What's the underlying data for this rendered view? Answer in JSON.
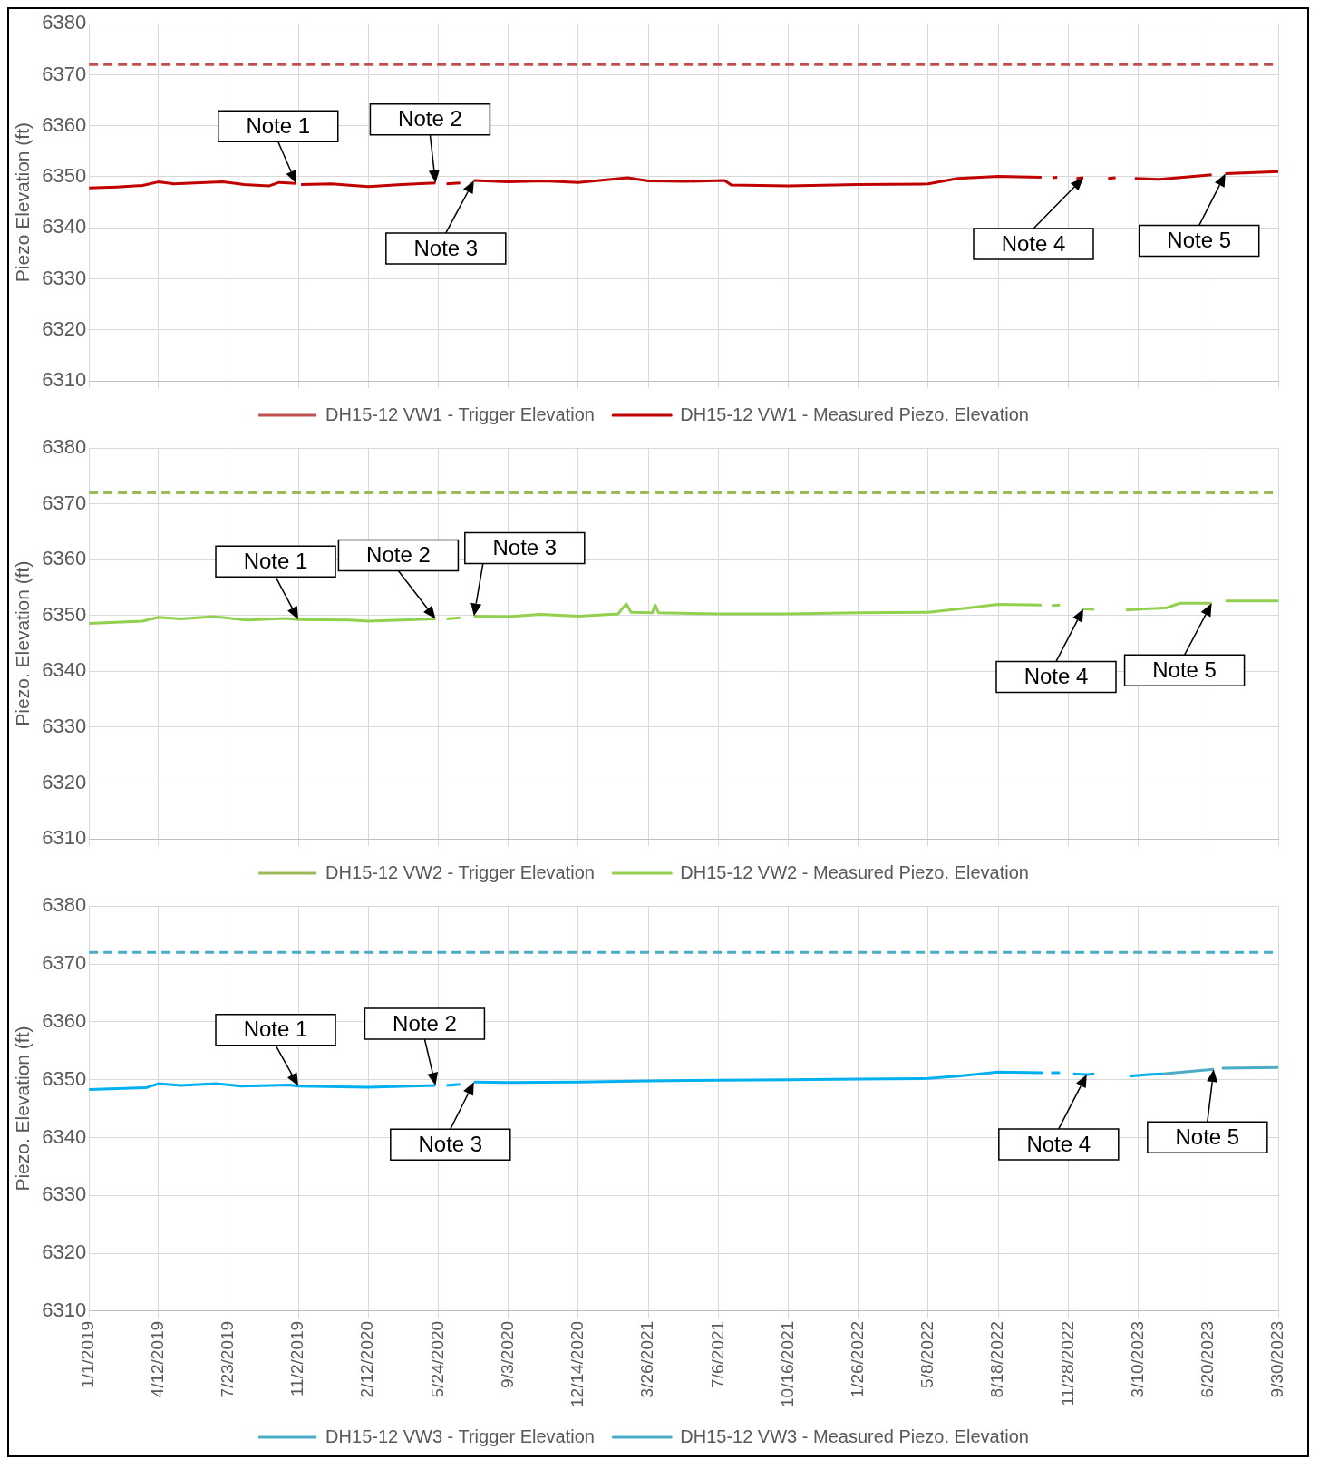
{
  "chart_data": [
    {
      "type": "line",
      "ylabel": "Piezo Elevation (ft)",
      "xlim": [
        "2019-01-01",
        "2023-09-30"
      ],
      "xticks": [
        {
          "value": "2019-01-01",
          "label": null
        },
        {
          "value": "2019-04-12",
          "label": null
        },
        {
          "value": "2019-07-23",
          "label": null
        },
        {
          "value": "2019-11-02",
          "label": null
        },
        {
          "value": "2020-02-12",
          "label": null
        },
        {
          "value": "2020-05-24",
          "label": null
        },
        {
          "value": "2020-09-03",
          "label": null
        },
        {
          "value": "2020-12-14",
          "label": null
        },
        {
          "value": "2021-03-26",
          "label": null
        },
        {
          "value": "2021-07-06",
          "label": null
        },
        {
          "value": "2021-10-16",
          "label": null
        },
        {
          "value": "2022-01-26",
          "label": null
        },
        {
          "value": "2022-05-08",
          "label": null
        },
        {
          "value": "2022-08-18",
          "label": null
        },
        {
          "value": "2022-11-28",
          "label": null
        },
        {
          "value": "2023-03-10",
          "label": null
        },
        {
          "value": "2023-06-20",
          "label": null
        },
        {
          "value": "2023-09-30",
          "label": null
        }
      ],
      "ylim": [
        6310,
        6380
      ],
      "yticks": [
        6310,
        6320,
        6330,
        6340,
        6350,
        6360,
        6370,
        6380
      ],
      "grid": true,
      "legend": "bottom",
      "tick_labels": "y",
      "series": [
        {
          "name": "DH15-12 VW1 - Trigger Elevation",
          "color": "#c0504d",
          "line_style": "dashed",
          "x": [
            "2019-01-01",
            "2023-09-30"
          ],
          "values": [
            6372,
            6372
          ]
        },
        {
          "name": "DH15-12 VW1 - Measured Piezo. Elevation",
          "color": "#c00000",
          "line_style": "solid",
          "x": [
            "2019-01-01",
            "2019-02-10",
            "2019-03-20",
            "2019-04-12",
            "2019-05-05",
            "2019-06-20",
            "2019-07-15",
            "2019-08-15",
            "2019-09-20",
            "2019-10-05",
            "2019-10-30",
            "2019-11-03",
            "2019-11-06",
            "2019-12-20",
            "2020-02-12",
            "2020-04-01",
            "2020-05-20",
            "2020-05-28",
            "2020-06-05",
            "2020-06-25",
            "2020-07-05",
            "2020-07-15",
            "2020-09-03",
            "2020-10-25",
            "2020-12-14",
            "2021-02-24",
            "2021-03-26",
            "2021-05-20",
            "2021-07-15",
            "2021-07-25",
            "2021-10-16",
            "2022-01-26",
            "2022-05-08",
            "2022-06-20",
            "2022-08-18",
            "2022-10-20",
            "2022-10-28",
            "2022-11-05",
            "2022-11-12",
            "2022-11-20",
            "2022-12-10",
            "2022-12-20",
            "2023-01-05",
            "2023-01-25",
            "2023-02-05",
            "2023-02-20",
            "2023-03-05",
            "2023-04-10",
            "2023-06-10",
            "2023-06-25",
            "2023-07-05",
            "2023-07-15",
            "2023-09-30"
          ],
          "values": [
            6347.8,
            6348.0,
            6348.3,
            6349.0,
            6348.6,
            6348.9,
            6349.0,
            6348.5,
            6348.2,
            6348.9,
            6348.7,
            null,
            6348.5,
            6348.6,
            6348.1,
            6348.5,
            6348.8,
            null,
            6348.6,
            6348.8,
            null,
            6349.3,
            6349.0,
            6349.2,
            6348.9,
            6349.8,
            6349.2,
            6349.1,
            6349.3,
            6348.4,
            6348.2,
            6348.5,
            6348.6,
            6349.7,
            6350.1,
            6349.9,
            null,
            6349.8,
            6349.9,
            null,
            6349.7,
            6349.8,
            null,
            6349.7,
            6349.8,
            null,
            6349.7,
            6349.5,
            6350.2,
            6350.4,
            null,
            6350.6,
            6351.0
          ]
        }
      ],
      "annotations": [
        {
          "text": "Note 1",
          "x": "2019-10-30",
          "y": 6348.7
        },
        {
          "text": "Note 2",
          "x": "2020-05-20",
          "y": 6348.8
        },
        {
          "text": "Note 3",
          "x": "2020-07-15",
          "y": 6349.3
        },
        {
          "text": "Note 4",
          "x": "2022-12-20",
          "y": 6349.8
        },
        {
          "text": "Note 5",
          "x": "2023-07-15",
          "y": 6350.6
        }
      ]
    },
    {
      "type": "line",
      "ylabel": "Piezo. Elevation (ft)",
      "xlim": [
        "2019-01-01",
        "2023-09-30"
      ],
      "xticks": [
        {
          "value": "2019-01-01",
          "label": null
        },
        {
          "value": "2019-04-12",
          "label": null
        },
        {
          "value": "2019-07-23",
          "label": null
        },
        {
          "value": "2019-11-02",
          "label": null
        },
        {
          "value": "2020-02-12",
          "label": null
        },
        {
          "value": "2020-05-24",
          "label": null
        },
        {
          "value": "2020-09-03",
          "label": null
        },
        {
          "value": "2020-12-14",
          "label": null
        },
        {
          "value": "2021-03-26",
          "label": null
        },
        {
          "value": "2021-07-06",
          "label": null
        },
        {
          "value": "2021-10-16",
          "label": null
        },
        {
          "value": "2022-01-26",
          "label": null
        },
        {
          "value": "2022-05-08",
          "label": null
        },
        {
          "value": "2022-08-18",
          "label": null
        },
        {
          "value": "2022-11-28",
          "label": null
        },
        {
          "value": "2023-03-10",
          "label": null
        },
        {
          "value": "2023-06-20",
          "label": null
        },
        {
          "value": "2023-09-30",
          "label": null
        }
      ],
      "ylim": [
        6310,
        6380
      ],
      "yticks": [
        6310,
        6320,
        6330,
        6340,
        6350,
        6360,
        6370,
        6380
      ],
      "grid": true,
      "legend": "bottom",
      "tick_labels": "y",
      "series": [
        {
          "name": "DH15-12 VW2 - Trigger Elevation",
          "color": "#9bbb59",
          "line_style": "dashed",
          "x": [
            "2019-01-01",
            "2023-09-30"
          ],
          "values": [
            6372,
            6372
          ]
        },
        {
          "name": "DH15-12 VW2 - Measured Piezo. Elevation",
          "color": "#92d050",
          "line_style": "solid",
          "x": [
            "2019-01-01",
            "2019-03-20",
            "2019-04-12",
            "2019-05-15",
            "2019-07-01",
            "2019-08-20",
            "2019-10-15",
            "2019-11-02",
            "2020-01-15",
            "2020-02-12",
            "2020-05-20",
            "2020-05-26",
            "2020-06-05",
            "2020-06-25",
            "2020-07-05",
            "2020-07-15",
            "2020-09-03",
            "2020-10-20",
            "2020-12-14",
            "2021-02-10",
            "2021-02-22",
            "2021-03-01",
            "2021-04-01",
            "2021-04-05",
            "2021-04-10",
            "2021-07-06",
            "2021-10-16",
            "2022-01-26",
            "2022-05-08",
            "2022-07-01",
            "2022-08-18",
            "2022-10-20",
            "2022-10-28",
            "2022-11-04",
            "2022-11-16",
            "2022-11-25",
            "2022-12-20",
            "2023-01-05",
            "2023-01-15",
            "2023-02-20",
            "2023-04-20",
            "2023-05-10",
            "2023-06-25",
            "2023-07-05",
            "2023-07-15",
            "2023-09-30"
          ],
          "values": [
            6348.6,
            6349.0,
            6349.7,
            6349.4,
            6349.8,
            6349.2,
            6349.5,
            6349.3,
            6349.2,
            6349.0,
            6349.4,
            null,
            6349.4,
            6349.6,
            null,
            6349.9,
            6349.8,
            6350.2,
            6349.9,
            6350.3,
            6352.1,
            6350.6,
            6350.5,
            6351.9,
            6350.5,
            6350.3,
            6350.3,
            6350.5,
            6350.6,
            6351.3,
            6352.0,
            6351.9,
            null,
            6351.8,
            6351.9,
            null,
            6351.2,
            6351.1,
            null,
            6351.0,
            6351.4,
            6352.2,
            6352.2,
            null,
            6352.6,
            6352.6
          ]
        }
      ],
      "annotations": [
        {
          "text": "Note 1",
          "x": "2019-11-02",
          "y": 6349.3
        },
        {
          "text": "Note 2",
          "x": "2020-05-20",
          "y": 6349.4
        },
        {
          "text": "Note 3",
          "x": "2020-07-15",
          "y": 6349.9
        },
        {
          "text": "Note 4",
          "x": "2022-12-20",
          "y": 6351.2
        },
        {
          "text": "Note 5",
          "x": "2023-06-25",
          "y": 6352.2
        }
      ]
    },
    {
      "type": "line",
      "ylabel": "Piezo. Elevation (ft)",
      "xlim": [
        "2019-01-01",
        "2023-09-30"
      ],
      "xticks": [
        {
          "value": "2019-01-01",
          "label": "1/1/2019"
        },
        {
          "value": "2019-04-12",
          "label": "4/12/2019"
        },
        {
          "value": "2019-07-23",
          "label": "7/23/2019"
        },
        {
          "value": "2019-11-02",
          "label": "11/2/2019"
        },
        {
          "value": "2020-02-12",
          "label": "2/12/2020"
        },
        {
          "value": "2020-05-24",
          "label": "5/24/2020"
        },
        {
          "value": "2020-09-03",
          "label": "9/3/2020"
        },
        {
          "value": "2020-12-14",
          "label": "12/14/2020"
        },
        {
          "value": "2021-03-26",
          "label": "3/26/2021"
        },
        {
          "value": "2021-07-06",
          "label": "7/6/2021"
        },
        {
          "value": "2021-10-16",
          "label": "10/16/2021"
        },
        {
          "value": "2022-01-26",
          "label": "1/26/2022"
        },
        {
          "value": "2022-05-08",
          "label": "5/8/2022"
        },
        {
          "value": "2022-08-18",
          "label": "8/18/2022"
        },
        {
          "value": "2022-11-28",
          "label": "11/28/2022"
        },
        {
          "value": "2023-03-10",
          "label": "3/10/2023"
        },
        {
          "value": "2023-06-20",
          "label": "6/20/2023"
        },
        {
          "value": "2023-09-30",
          "label": "9/30/2023"
        }
      ],
      "ylim": [
        6310,
        6380
      ],
      "yticks": [
        6310,
        6320,
        6330,
        6340,
        6350,
        6360,
        6370,
        6380
      ],
      "grid": true,
      "legend": "bottom",
      "series": [
        {
          "name": "DH15-12 VW3 - Trigger Elevation",
          "color": "#4bacc6",
          "line_style": "dashed",
          "x": [
            "2019-01-01",
            "2023-09-30"
          ],
          "values": [
            6372,
            6372
          ]
        },
        {
          "color": "#00b0f0",
          "line_style": "solid",
          "x": [
            "2019-01-01",
            "2019-03-25",
            "2019-04-12",
            "2019-05-15",
            "2019-07-05",
            "2019-08-10",
            "2019-10-20",
            "2019-11-02",
            "2020-02-12",
            "2020-05-20",
            "2020-05-27",
            "2020-06-05",
            "2020-06-25",
            "2020-07-05",
            "2020-07-15",
            "2020-09-03",
            "2020-12-14",
            "2021-03-26",
            "2021-07-06",
            "2021-10-16",
            "2022-01-26",
            "2022-05-08",
            "2022-06-20",
            "2022-08-18",
            "2022-10-22",
            "2022-10-28",
            "2022-11-03",
            "2022-11-16",
            "2022-11-22",
            "2022-12-05",
            "2022-12-25",
            "2023-01-05",
            "2023-01-15",
            "2023-02-25",
            "2023-03-25",
            "2023-04-15"
          ],
          "values": [
            6348.3,
            6348.6,
            6349.3,
            6349.0,
            6349.3,
            6348.9,
            6349.1,
            6348.9,
            6348.7,
            6349.0,
            null,
            6349.0,
            6349.2,
            null,
            6349.6,
            6349.5,
            6349.6,
            6349.8,
            6349.9,
            6350.0,
            6350.1,
            6350.2,
            6350.6,
            6351.3,
            6351.2,
            null,
            6351.2,
            6351.2,
            null,
            6351.0,
            6350.9,
            6351.0,
            null,
            6350.6,
            6350.9,
            6351.0
          ]
        },
        {
          "name": "DH15-12 VW3 - Measured Piezo. Elevation",
          "color": "#4bacc6",
          "line_style": "solid",
          "x": [
            "2023-04-15",
            "2023-06-20",
            "2023-06-28",
            "2023-07-05",
            "2023-07-10",
            "2023-09-30"
          ],
          "values": [
            6351.0,
            6351.7,
            6351.8,
            null,
            6352.0,
            6352.1
          ]
        }
      ],
      "annotations": [
        {
          "text": "Note 1",
          "x": "2019-11-02",
          "y": 6348.9
        },
        {
          "text": "Note 2",
          "x": "2020-05-20",
          "y": 6349.0
        },
        {
          "text": "Note 3",
          "x": "2020-07-15",
          "y": 6349.6
        },
        {
          "text": "Note 4",
          "x": "2022-12-25",
          "y": 6350.9
        },
        {
          "text": "Note 5",
          "x": "2023-06-28",
          "y": 6351.8
        }
      ]
    }
  ]
}
